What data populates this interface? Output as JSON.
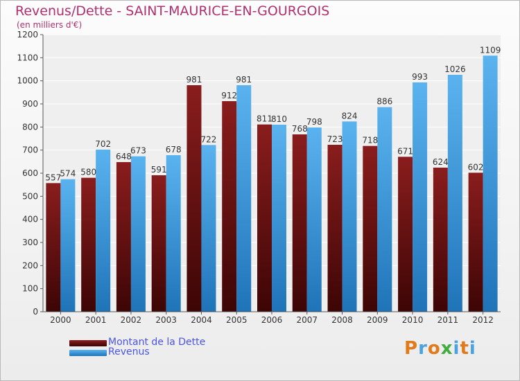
{
  "chart_data": {
    "type": "bar",
    "title": "Revenus/Dette - SAINT-MAURICE-EN-GOURGOIS",
    "subtitle": "(en milliers d'€)",
    "categories": [
      "2000",
      "2001",
      "2002",
      "2003",
      "2004",
      "2005",
      "2006",
      "2007",
      "2008",
      "2009",
      "2010",
      "2011",
      "2012"
    ],
    "series": [
      {
        "name": "Montant de la Dette",
        "color": "#7a1010",
        "values": [
          557,
          580,
          648,
          591,
          981,
          912,
          811,
          768,
          723,
          718,
          671,
          624,
          602
        ]
      },
      {
        "name": "Revenus",
        "color": "#3d9be0",
        "values": [
          574,
          702,
          673,
          678,
          722,
          981,
          810,
          798,
          824,
          886,
          993,
          1026,
          1109
        ]
      }
    ],
    "ylim": [
      0,
      1200
    ],
    "yticks": [
      0,
      100,
      200,
      300,
      400,
      500,
      600,
      700,
      800,
      900,
      1000,
      1100,
      1200
    ],
    "grid": true,
    "legend_position": "bottom-left"
  },
  "logo": {
    "text": "Proxiti",
    "colors": [
      "#e07a1a",
      "#4aa3df",
      "#e07a1a",
      "#3fae3f",
      "#4aa3df",
      "#e07a1a",
      "#4aa3df"
    ]
  }
}
